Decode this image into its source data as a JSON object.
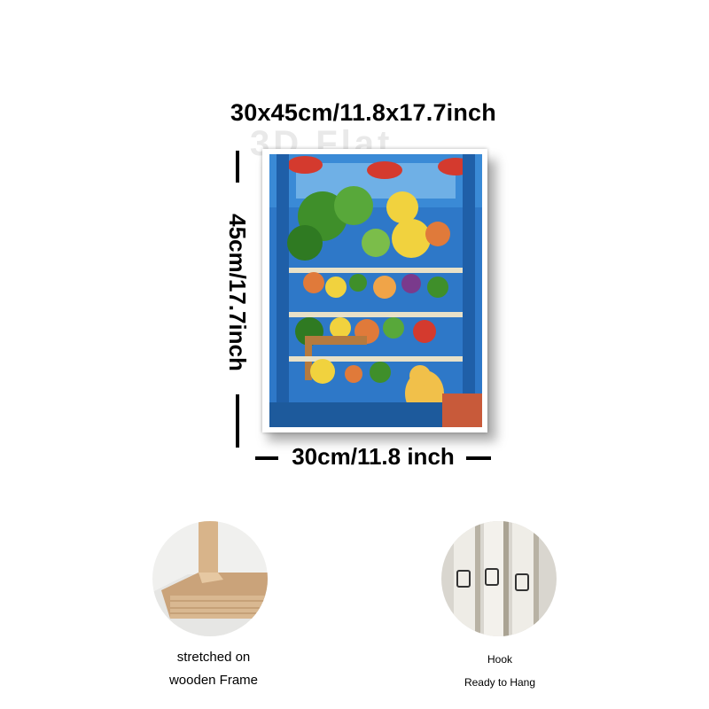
{
  "header": {
    "size_title": "30x45cm/11.8x17.7inch",
    "watermark": "3D Flat"
  },
  "dimensions": {
    "height_label": "45cm/17.7inch",
    "width_label": "30cm/11.8 inch"
  },
  "features": [
    {
      "icon": "wooden-frame-corner-icon",
      "line1": "stretched on",
      "line2": "wooden Frame"
    },
    {
      "icon": "hanging-hook-icon",
      "line1": "Hook",
      "line2": "Ready to Hang"
    }
  ],
  "colors": {
    "painting_blue": "#2e78c8",
    "painting_green": "#3f8f2a",
    "painting_yellow": "#f1d23e",
    "lamp_red": "#d43a2e",
    "wood": "#d8b48a",
    "canvas_white": "#ffffff"
  }
}
